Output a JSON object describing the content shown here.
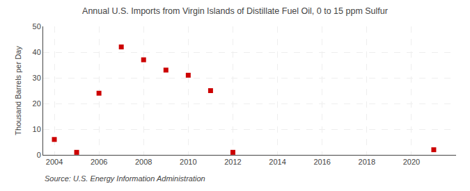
{
  "chart_data": {
    "type": "scatter",
    "title": "Annual U.S. Imports from Virgin Islands of Distillate Fuel Oil, 0 to 15 ppm Sulfur",
    "y_label": "Thousand Barrels per Day",
    "annotations": [
      "Source: U.S. Energy Information Administration"
    ],
    "x": [
      2004,
      2005,
      2006,
      2007,
      2008,
      2009,
      2010,
      2011,
      2012,
      2021
    ],
    "values": [
      6,
      1,
      24,
      42,
      37,
      33,
      31,
      25,
      1,
      2
    ],
    "color": "#cc0000",
    "marker": "square",
    "xlim": [
      2003.5,
      2022
    ],
    "ylim": [
      0,
      50
    ],
    "xticks": [
      2004,
      2006,
      2008,
      2010,
      2012,
      2014,
      2016,
      2018,
      2020
    ],
    "yticks": [
      0,
      10,
      20,
      30,
      40,
      50
    ],
    "grid": true
  }
}
